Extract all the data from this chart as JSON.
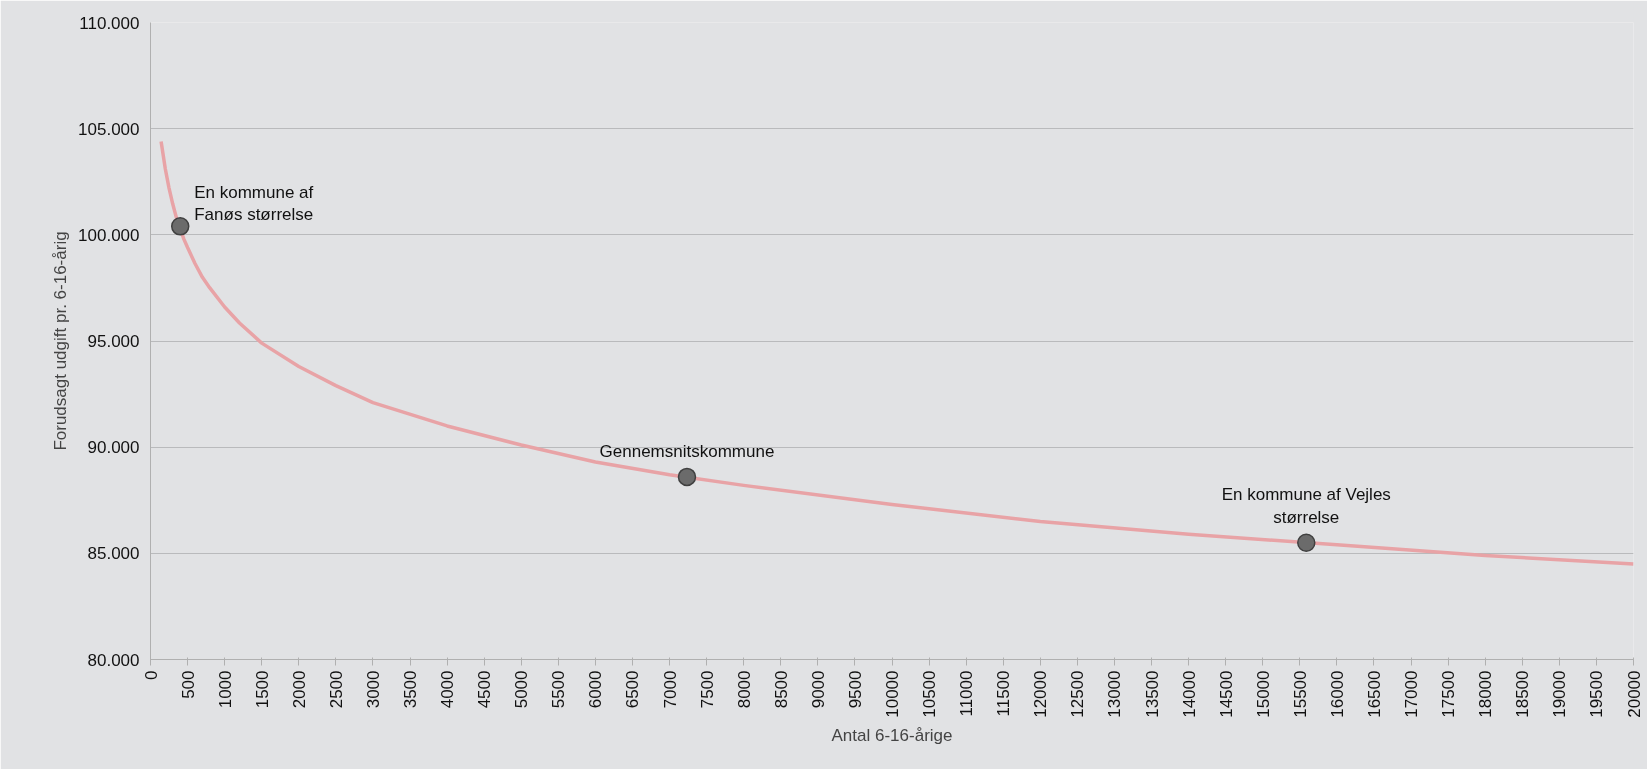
{
  "chart_data": {
    "type": "line",
    "xlabel": "Antal 6-16-årige",
    "ylabel": "Forudsagt udgift pr. 6-16-årig",
    "series": [
      {
        "color": "#e8a3a6",
        "x": [
          143,
          200,
          250,
          300,
          350,
          450,
          500,
          600,
          700,
          800,
          1000,
          1200,
          1500,
          2000,
          2500,
          3000,
          4000,
          5000,
          6000,
          7000,
          8000,
          10000,
          12000,
          14000,
          16000,
          18000,
          20000
        ],
        "values": [
          104400,
          103100,
          102200,
          101450,
          100800,
          99800,
          99400,
          98650,
          98000,
          97500,
          96600,
          95850,
          94900,
          93800,
          92900,
          92100,
          91000,
          90100,
          89300,
          88700,
          88200,
          87300,
          86500,
          85900,
          85400,
          84900,
          84500
        ]
      },
      {
        "type": "scatter",
        "marker": "circle",
        "color": "#6b6b6b",
        "x": [
          401,
          7235,
          15587
        ],
        "values": [
          100400,
          88600,
          85500
        ]
      }
    ],
    "annotations": [
      {
        "text": "En kommune af\nFanøs størrelse",
        "x": 401,
        "y": 100400
      },
      {
        "text": "Gennemsnitskommune",
        "x": 7235,
        "y": 88600
      },
      {
        "text": "En kommune af Vejles\nstørrelse",
        "x": 15587,
        "y": 85500
      }
    ],
    "xlim": [
      0,
      20000
    ],
    "ylim": [
      80000,
      110000
    ],
    "xticks": [
      0,
      500,
      1000,
      1500,
      2000,
      2500,
      3000,
      3500,
      4000,
      4500,
      5000,
      5500,
      6000,
      6500,
      7000,
      7500,
      8000,
      8500,
      9000,
      9500,
      10000,
      10500,
      11000,
      11500,
      12000,
      12500,
      13000,
      13500,
      14000,
      14500,
      15000,
      15500,
      16000,
      16500,
      17000,
      17500,
      18000,
      18500,
      19000,
      19500,
      20000
    ],
    "yticks": [
      {
        "value": 80000,
        "label": "80.000"
      },
      {
        "value": 85000,
        "label": "85.000"
      },
      {
        "value": 90000,
        "label": "90.000"
      },
      {
        "value": 95000,
        "label": "95.000"
      },
      {
        "value": 100000,
        "label": "100.000"
      },
      {
        "value": 105000,
        "label": "105.000"
      },
      {
        "value": 110000,
        "label": "110.000"
      }
    ],
    "grid": "y",
    "line_style": "solid"
  }
}
